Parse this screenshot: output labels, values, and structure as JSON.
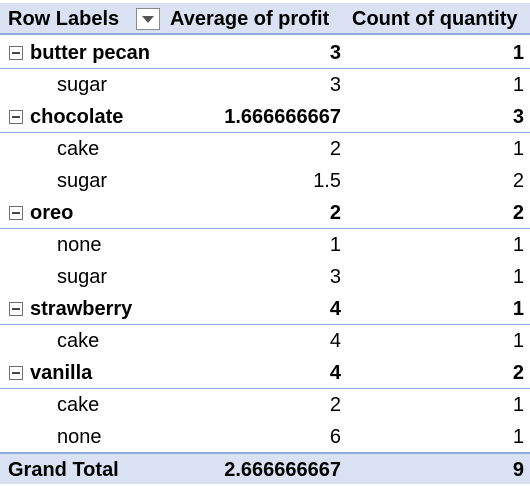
{
  "header": {
    "row_labels": "Row Labels",
    "avg_profit": "Average of profit",
    "count_quantity": "Count of quantity",
    "filter_icon": "dropdown-arrow-icon"
  },
  "groups": [
    {
      "label": "butter pecan",
      "avg": "3",
      "count": "1",
      "children": [
        {
          "label": "sugar",
          "avg": "3",
          "count": "1"
        }
      ]
    },
    {
      "label": "chocolate",
      "avg": "1.666666667",
      "count": "3",
      "children": [
        {
          "label": "cake",
          "avg": "2",
          "count": "1"
        },
        {
          "label": "sugar",
          "avg": "1.5",
          "count": "2"
        }
      ]
    },
    {
      "label": "oreo",
      "avg": "2",
      "count": "2",
      "children": [
        {
          "label": "none",
          "avg": "1",
          "count": "1"
        },
        {
          "label": "sugar",
          "avg": "3",
          "count": "1"
        }
      ]
    },
    {
      "label": "strawberry",
      "avg": "4",
      "count": "1",
      "children": [
        {
          "label": "cake",
          "avg": "4",
          "count": "1"
        }
      ]
    },
    {
      "label": "vanilla",
      "avg": "4",
      "count": "2",
      "children": [
        {
          "label": "cake",
          "avg": "2",
          "count": "1"
        },
        {
          "label": "none",
          "avg": "6",
          "count": "1"
        }
      ]
    }
  ],
  "grand_total": {
    "label": "Grand Total",
    "avg": "2.666666667",
    "count": "9"
  },
  "colors": {
    "header_bg": "#d9e1f2",
    "border": "#8ea9db"
  }
}
